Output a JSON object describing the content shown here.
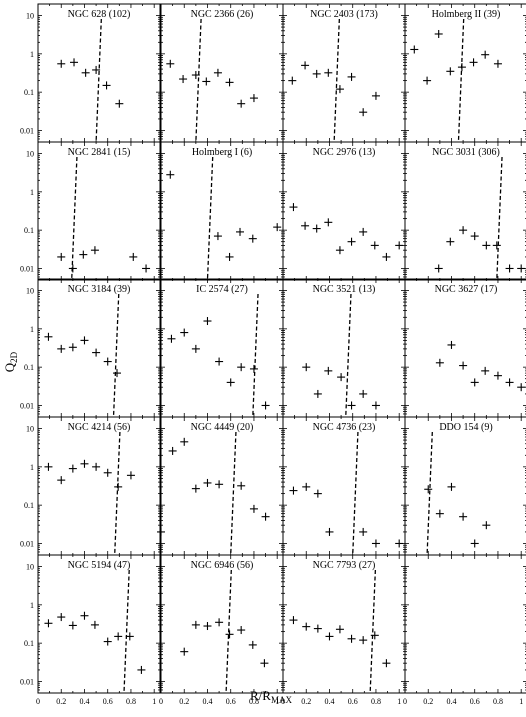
{
  "chart_data": {
    "type": "scatter",
    "xlabel": "R/R",
    "xlabel_sub": "MAX",
    "ylabel": "Q",
    "ylabel_sub": "2D",
    "xlim": [
      0,
      1.05
    ],
    "ylim": [
      0.005,
      20
    ],
    "yscale": "log",
    "x_ticks": [
      "0",
      "0.2",
      "0.4",
      "0.6",
      "0.8",
      "1"
    ],
    "y_ticks": [
      "10",
      "1",
      "0.1",
      "0.01"
    ],
    "marker": "+",
    "grid": false,
    "panels": [
      {
        "name": "NGC 628 (102)",
        "rmax_line": 0.51,
        "points": [
          [
            0.2,
            0.55
          ],
          [
            0.31,
            0.6
          ],
          [
            0.41,
            0.32
          ],
          [
            0.5,
            0.38
          ],
          [
            0.59,
            0.15
          ],
          [
            0.7,
            0.05
          ]
        ]
      },
      {
        "name": "NGC 2366 (26)",
        "rmax_line": 0.31,
        "points": [
          [
            0.08,
            0.55
          ],
          [
            0.19,
            0.22
          ],
          [
            0.3,
            0.28
          ],
          [
            0.39,
            0.19
          ],
          [
            0.49,
            0.32
          ],
          [
            0.59,
            0.18
          ],
          [
            0.69,
            0.05
          ],
          [
            0.8,
            0.07
          ]
        ]
      },
      {
        "name": "NGC 2403 (173)",
        "rmax_line": 0.45,
        "points": [
          [
            0.08,
            0.2
          ],
          [
            0.19,
            0.5
          ],
          [
            0.29,
            0.3
          ],
          [
            0.39,
            0.32
          ],
          [
            0.49,
            0.12
          ],
          [
            0.59,
            0.25
          ],
          [
            0.69,
            0.03
          ],
          [
            0.8,
            0.08
          ]
        ]
      },
      {
        "name": "Holmberg II (39)",
        "rmax_line": 0.47,
        "points": [
          [
            0.08,
            1.3
          ],
          [
            0.19,
            0.2
          ],
          [
            0.29,
            3.3
          ],
          [
            0.39,
            0.35
          ],
          [
            0.49,
            0.45
          ],
          [
            0.59,
            0.6
          ],
          [
            0.69,
            0.95
          ],
          [
            0.8,
            0.55
          ]
        ]
      },
      {
        "name": "NGC 2841 (15)",
        "rmax_line": 0.3,
        "points": [
          [
            0.2,
            0.02
          ],
          [
            0.3,
            0.01
          ],
          [
            0.39,
            0.023
          ],
          [
            0.49,
            0.03
          ],
          [
            0.82,
            0.02
          ],
          [
            0.93,
            0.01
          ]
        ]
      },
      {
        "name": "Holmberg I (6)",
        "rmax_line": 0.41,
        "points": [
          [
            0.08,
            2.8
          ],
          [
            0.49,
            0.07
          ],
          [
            0.59,
            0.02
          ],
          [
            0.68,
            0.09
          ],
          [
            0.79,
            0.06
          ],
          [
            1.0,
            0.12
          ]
        ]
      },
      {
        "name": "NGC 2976 (13)",
        "rmax_line": null,
        "points": [
          [
            0.09,
            0.4
          ],
          [
            0.19,
            0.13
          ],
          [
            0.29,
            0.11
          ],
          [
            0.39,
            0.16
          ],
          [
            0.49,
            0.03
          ],
          [
            0.59,
            0.05
          ],
          [
            0.69,
            0.09
          ],
          [
            0.79,
            0.04
          ],
          [
            0.89,
            0.02
          ],
          [
            1.0,
            0.04
          ]
        ]
      },
      {
        "name": "NGC 3031 (306)",
        "rmax_line": 0.8,
        "points": [
          [
            0.29,
            0.01
          ],
          [
            0.39,
            0.05
          ],
          [
            0.5,
            0.1
          ],
          [
            0.6,
            0.07
          ],
          [
            0.7,
            0.04
          ],
          [
            0.79,
            0.04
          ],
          [
            0.9,
            0.01
          ],
          [
            1.0,
            0.01
          ]
        ]
      },
      {
        "name": "NGC 3184 (39)",
        "rmax_line": 0.66,
        "points": [
          [
            0.09,
            0.62
          ],
          [
            0.2,
            0.3
          ],
          [
            0.3,
            0.33
          ],
          [
            0.4,
            0.5
          ],
          [
            0.5,
            0.24
          ],
          [
            0.6,
            0.14
          ],
          [
            0.68,
            0.07
          ]
        ]
      },
      {
        "name": "IC 2574 (27)",
        "rmax_line": 0.8,
        "points": [
          [
            0.09,
            0.55
          ],
          [
            0.2,
            0.8
          ],
          [
            0.3,
            0.3
          ],
          [
            0.4,
            1.6
          ],
          [
            0.5,
            0.14
          ],
          [
            0.6,
            0.04
          ],
          [
            0.69,
            0.1
          ],
          [
            0.8,
            0.09
          ],
          [
            0.9,
            0.01
          ]
        ]
      },
      {
        "name": "NGC 3521 (13)",
        "rmax_line": 0.55,
        "points": [
          [
            0.2,
            0.1
          ],
          [
            0.3,
            0.02
          ],
          [
            0.39,
            0.08
          ],
          [
            0.5,
            0.055
          ],
          [
            0.59,
            0.01
          ],
          [
            0.69,
            0.02
          ],
          [
            0.8,
            0.01
          ]
        ]
      },
      {
        "name": "NGC 3627 (17)",
        "rmax_line": null,
        "points": [
          [
            0.3,
            0.13
          ],
          [
            0.4,
            0.38
          ],
          [
            0.5,
            0.11
          ],
          [
            0.6,
            0.04
          ],
          [
            0.69,
            0.08
          ],
          [
            0.8,
            0.06
          ],
          [
            0.9,
            0.04
          ],
          [
            1.0,
            0.03
          ]
        ]
      },
      {
        "name": "NGC 4214 (56)",
        "rmax_line": 0.67,
        "points": [
          [
            0.09,
            1.0
          ],
          [
            0.2,
            0.45
          ],
          [
            0.3,
            0.9
          ],
          [
            0.4,
            1.2
          ],
          [
            0.5,
            1.0
          ],
          [
            0.6,
            0.7
          ],
          [
            0.69,
            0.3
          ],
          [
            0.8,
            0.6
          ]
        ]
      },
      {
        "name": "NGC 4449 (20)",
        "rmax_line": 0.61,
        "points": [
          [
            0.0,
            0.02
          ],
          [
            0.1,
            2.6
          ],
          [
            0.2,
            4.5
          ],
          [
            0.3,
            0.27
          ],
          [
            0.4,
            0.38
          ],
          [
            0.5,
            0.35
          ],
          [
            0.69,
            0.32
          ],
          [
            0.8,
            0.08
          ],
          [
            0.9,
            0.05
          ]
        ]
      },
      {
        "name": "NGC 4736 (23)",
        "rmax_line": 0.61,
        "points": [
          [
            0.09,
            0.24
          ],
          [
            0.2,
            0.3
          ],
          [
            0.3,
            0.2
          ],
          [
            0.4,
            0.02
          ],
          [
            0.69,
            0.02
          ],
          [
            0.8,
            0.01
          ],
          [
            1.0,
            0.01
          ]
        ]
      },
      {
        "name": "DDO 154 (9)",
        "rmax_line": 0.2,
        "points": [
          [
            0.2,
            0.26
          ],
          [
            0.3,
            0.06
          ],
          [
            0.4,
            0.3
          ],
          [
            0.5,
            0.05
          ],
          [
            0.6,
            0.01
          ],
          [
            0.7,
            0.03
          ]
        ]
      },
      {
        "name": "NGC 5194 (47)",
        "rmax_line": 0.75,
        "points": [
          [
            0.09,
            0.33
          ],
          [
            0.2,
            0.48
          ],
          [
            0.3,
            0.29
          ],
          [
            0.4,
            0.52
          ],
          [
            0.49,
            0.3
          ],
          [
            0.6,
            0.11
          ],
          [
            0.69,
            0.15
          ],
          [
            0.79,
            0.15
          ],
          [
            0.89,
            0.02
          ]
        ]
      },
      {
        "name": "NGC 6946 (56)",
        "rmax_line": 0.57,
        "points": [
          [
            0.2,
            0.06
          ],
          [
            0.3,
            0.3
          ],
          [
            0.4,
            0.28
          ],
          [
            0.5,
            0.35
          ],
          [
            0.59,
            0.17
          ],
          [
            0.69,
            0.22
          ],
          [
            0.79,
            0.09
          ],
          [
            0.89,
            0.03
          ]
        ]
      },
      {
        "name": "NGC 7793 (27)",
        "rmax_line": 0.76,
        "points": [
          [
            0.09,
            0.4
          ],
          [
            0.2,
            0.27
          ],
          [
            0.3,
            0.24
          ],
          [
            0.4,
            0.15
          ],
          [
            0.49,
            0.23
          ],
          [
            0.59,
            0.13
          ],
          [
            0.69,
            0.12
          ],
          [
            0.79,
            0.16
          ],
          [
            0.89,
            0.03
          ]
        ]
      },
      {
        "name": "",
        "rmax_line": null,
        "points": []
      }
    ]
  }
}
